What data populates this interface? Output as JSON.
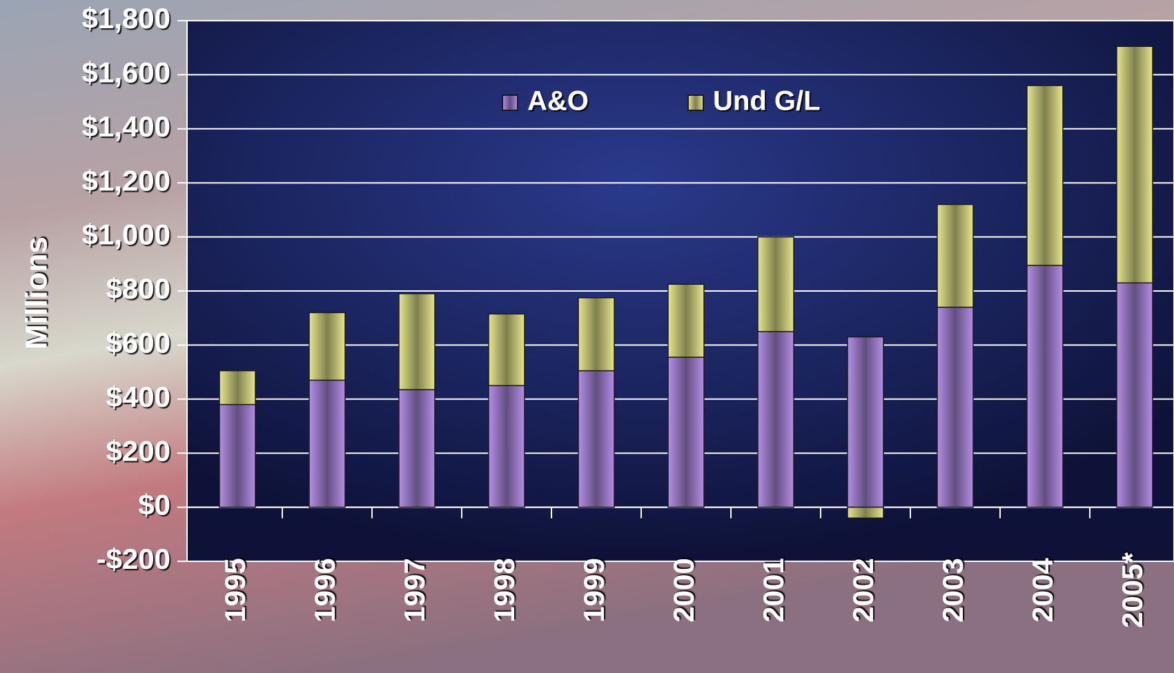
{
  "chart_data": {
    "type": "stacked-bar",
    "y_label": "Millions",
    "categories": [
      "1995",
      "1996",
      "1997",
      "1998",
      "1999",
      "2000",
      "2001",
      "2002",
      "2003",
      "2004",
      "2005*"
    ],
    "series": [
      {
        "name": "A&O",
        "color": "#b48ee6",
        "values": [
          380,
          470,
          435,
          450,
          505,
          555,
          650,
          630,
          740,
          895,
          830
        ]
      },
      {
        "name": "Und G/L",
        "color": "#e6e68c",
        "values": [
          125,
          250,
          355,
          265,
          270,
          270,
          350,
          -40,
          380,
          665,
          875
        ]
      }
    ],
    "ylim": [
      -200,
      1800
    ],
    "yticks": [
      {
        "value": -200,
        "label": "-$200"
      },
      {
        "value": 0,
        "label": "$0"
      },
      {
        "value": 200,
        "label": "$200"
      },
      {
        "value": 400,
        "label": "$400"
      },
      {
        "value": 600,
        "label": "$600"
      },
      {
        "value": 800,
        "label": "$800"
      },
      {
        "value": 1000,
        "label": "$1,000"
      },
      {
        "value": 1200,
        "label": "$1,200"
      },
      {
        "value": 1400,
        "label": "$1,400"
      },
      {
        "value": 1600,
        "label": "$1,600"
      },
      {
        "value": 1800,
        "label": "$1,800"
      }
    ],
    "grid": true,
    "legend": "top"
  }
}
